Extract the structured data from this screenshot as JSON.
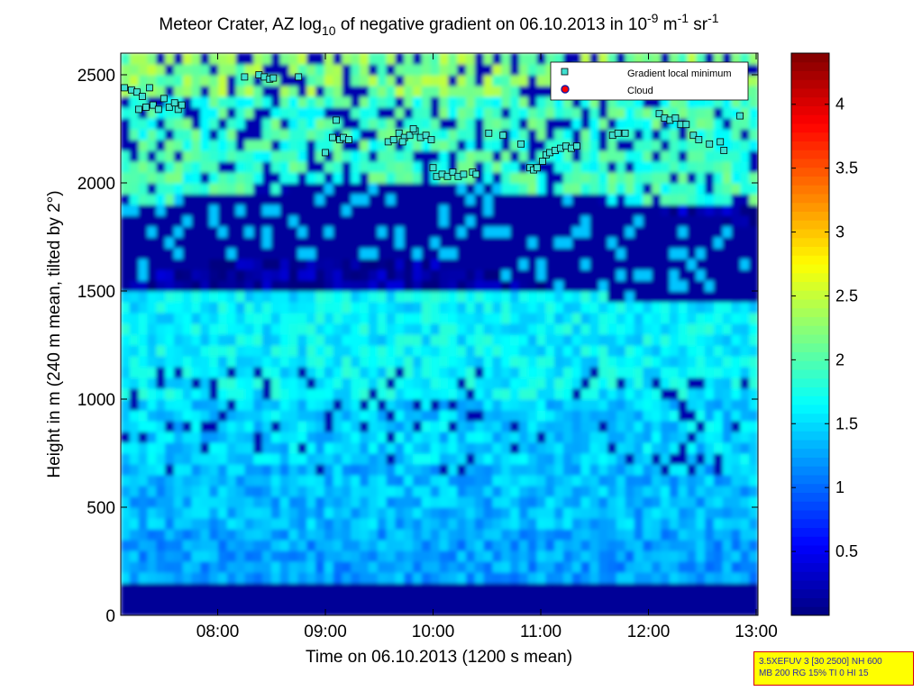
{
  "chart_data": {
    "type": "heatmap",
    "title": {
      "prefix": "Meteor Crater, AZ log",
      "sub": "10",
      "middle": " of negative gradient on 06.10.2013 in 10",
      "exp1": "-9",
      "unit1": " m",
      "exp2": "-1",
      "unit2": " sr",
      "exp3": "-1"
    },
    "xlabel": "Time on 06.10.2013 (1200 s mean)",
    "ylabel": "Height in m (240 m mean, tilted by 2°)",
    "xlim": [
      "07:06",
      "13:01"
    ],
    "ylim": [
      0,
      2600
    ],
    "x_ticks": [
      {
        "label": "08:00",
        "value": "08:00"
      },
      {
        "label": "09:00",
        "value": "09:00"
      },
      {
        "label": "10:00",
        "value": "10:00"
      },
      {
        "label": "11:00",
        "value": "11:00"
      },
      {
        "label": "12:00",
        "value": "12:00"
      },
      {
        "label": "13:00",
        "value": "13:00"
      }
    ],
    "y_ticks": [
      {
        "label": "0",
        "value": 0
      },
      {
        "label": "500",
        "value": 500
      },
      {
        "label": "1000",
        "value": 1000
      },
      {
        "label": "1500",
        "value": 1500
      },
      {
        "label": "2000",
        "value": 2000
      },
      {
        "label": "2500",
        "value": 2500
      }
    ],
    "colorbar": {
      "colormap": "jet",
      "range": [
        0,
        4.4
      ],
      "ticks": [
        {
          "label": "0.5",
          "value": 0.5
        },
        {
          "label": "1",
          "value": 1
        },
        {
          "label": "1.5",
          "value": 1.5
        },
        {
          "label": "2",
          "value": 2
        },
        {
          "label": "2.5",
          "value": 2.5
        },
        {
          "label": "3",
          "value": 3
        },
        {
          "label": "3.5",
          "value": 3.5
        },
        {
          "label": "4",
          "value": 4
        }
      ]
    },
    "legend": {
      "placement": "top-right",
      "entries": [
        {
          "name": "Gradient local minimum",
          "marker": "square",
          "color": "#40e0d0"
        },
        {
          "name": "Cloud",
          "marker": "circle",
          "color": "#ff0000"
        }
      ]
    },
    "field": {
      "description_levels": "log10 gradient values",
      "bands": [
        {
          "h": [
            0,
            170
          ],
          "v": 0.1
        },
        {
          "h": [
            170,
            400
          ],
          "v": 1.25
        },
        {
          "h": [
            400,
            700
          ],
          "v": 1.35
        },
        {
          "h": [
            700,
            1000
          ],
          "v": 1.45
        },
        {
          "h": [
            1000,
            1500
          ],
          "v": 1.6
        },
        {
          "h": [
            1500,
            1900
          ],
          "v": 0.15
        },
        {
          "h": [
            1900,
            2400
          ],
          "v": 1.9
        },
        {
          "h": [
            2400,
            2600
          ],
          "v": 2.2
        }
      ]
    },
    "gradient_local_minimum": [
      {
        "t": "07:08",
        "h": 2440
      },
      {
        "t": "07:12",
        "h": 2430
      },
      {
        "t": "07:15",
        "h": 2420
      },
      {
        "t": "07:18",
        "h": 2400
      },
      {
        "t": "07:20",
        "h": 2350
      },
      {
        "t": "07:24",
        "h": 2360
      },
      {
        "t": "07:27",
        "h": 2340
      },
      {
        "t": "07:30",
        "h": 2390
      },
      {
        "t": "07:33",
        "h": 2350
      },
      {
        "t": "07:36",
        "h": 2370
      },
      {
        "t": "07:38",
        "h": 2340
      },
      {
        "t": "07:40",
        "h": 2360
      },
      {
        "t": "07:22",
        "h": 2440
      },
      {
        "t": "07:16",
        "h": 2340
      },
      {
        "t": "08:15",
        "h": 2490
      },
      {
        "t": "08:23",
        "h": 2500
      },
      {
        "t": "08:26",
        "h": 2490
      },
      {
        "t": "08:29",
        "h": 2480
      },
      {
        "t": "08:31",
        "h": 2485
      },
      {
        "t": "08:45",
        "h": 2490
      },
      {
        "t": "09:00",
        "h": 2140
      },
      {
        "t": "09:04",
        "h": 2210
      },
      {
        "t": "09:06",
        "h": 2290
      },
      {
        "t": "09:08",
        "h": 2200
      },
      {
        "t": "09:10",
        "h": 2210
      },
      {
        "t": "09:13",
        "h": 2200
      },
      {
        "t": "09:35",
        "h": 2190
      },
      {
        "t": "09:38",
        "h": 2200
      },
      {
        "t": "09:41",
        "h": 2230
      },
      {
        "t": "09:44",
        "h": 2210
      },
      {
        "t": "09:47",
        "h": 2220
      },
      {
        "t": "09:50",
        "h": 2240
      },
      {
        "t": "09:53",
        "h": 2210
      },
      {
        "t": "09:56",
        "h": 2220
      },
      {
        "t": "09:59",
        "h": 2200
      },
      {
        "t": "09:49",
        "h": 2250
      },
      {
        "t": "09:43",
        "h": 2190
      },
      {
        "t": "10:00",
        "h": 2070
      },
      {
        "t": "10:02",
        "h": 2030
      },
      {
        "t": "10:05",
        "h": 2040
      },
      {
        "t": "10:08",
        "h": 2030
      },
      {
        "t": "10:11",
        "h": 2050
      },
      {
        "t": "10:14",
        "h": 2030
      },
      {
        "t": "10:17",
        "h": 2040
      },
      {
        "t": "10:22",
        "h": 2050
      },
      {
        "t": "10:24",
        "h": 2040
      },
      {
        "t": "10:31",
        "h": 2230
      },
      {
        "t": "10:39",
        "h": 2220
      },
      {
        "t": "10:49",
        "h": 2180
      },
      {
        "t": "10:54",
        "h": 2070
      },
      {
        "t": "10:56",
        "h": 2060
      },
      {
        "t": "10:58",
        "h": 2070
      },
      {
        "t": "11:01",
        "h": 2100
      },
      {
        "t": "11:03",
        "h": 2130
      },
      {
        "t": "11:05",
        "h": 2140
      },
      {
        "t": "11:08",
        "h": 2150
      },
      {
        "t": "11:11",
        "h": 2160
      },
      {
        "t": "11:14",
        "h": 2170
      },
      {
        "t": "11:17",
        "h": 2160
      },
      {
        "t": "11:20",
        "h": 2170
      },
      {
        "t": "11:40",
        "h": 2220
      },
      {
        "t": "11:43",
        "h": 2230
      },
      {
        "t": "11:47",
        "h": 2230
      },
      {
        "t": "12:06",
        "h": 2320
      },
      {
        "t": "12:09",
        "h": 2300
      },
      {
        "t": "12:12",
        "h": 2290
      },
      {
        "t": "12:15",
        "h": 2300
      },
      {
        "t": "12:18",
        "h": 2270
      },
      {
        "t": "12:21",
        "h": 2270
      },
      {
        "t": "12:25",
        "h": 2220
      },
      {
        "t": "12:28",
        "h": 2200
      },
      {
        "t": "12:34",
        "h": 2180
      },
      {
        "t": "12:40",
        "h": 2190
      },
      {
        "t": "12:42",
        "h": 2150
      },
      {
        "t": "12:51",
        "h": 2310
      }
    ]
  },
  "param_box": {
    "line1": "3.5XEFUV 3 [30 2500] NH 600",
    "line2": "MB 200 RG 15% TI 0 HI 15"
  }
}
